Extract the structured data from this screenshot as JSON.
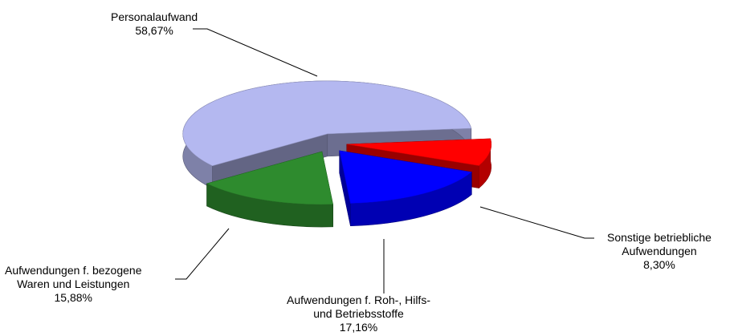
{
  "chart_data": {
    "type": "pie",
    "title": "",
    "style": "3d-exploded",
    "slices": [
      {
        "key": "personal",
        "label_lines": [
          "Personalaufwand"
        ],
        "value_label": "58,67%",
        "value": 58.67,
        "color": "#b4b8f0"
      },
      {
        "key": "sonstige",
        "label_lines": [
          "Sonstige betriebliche",
          "Aufwendungen"
        ],
        "value_label": "8,30%",
        "value": 8.3,
        "color": "#ff0000"
      },
      {
        "key": "roh",
        "label_lines": [
          "Aufwendungen f. Roh-, Hilfs-",
          "und Betriebsstoffe"
        ],
        "value_label": "17,16%",
        "value": 17.16,
        "color": "#0000ff"
      },
      {
        "key": "waren",
        "label_lines": [
          "Aufwendungen f. bezogene",
          "Waren und Leistungen"
        ],
        "value_label": "15,88%",
        "value": 15.88,
        "color": "#2e8b2e"
      }
    ]
  }
}
